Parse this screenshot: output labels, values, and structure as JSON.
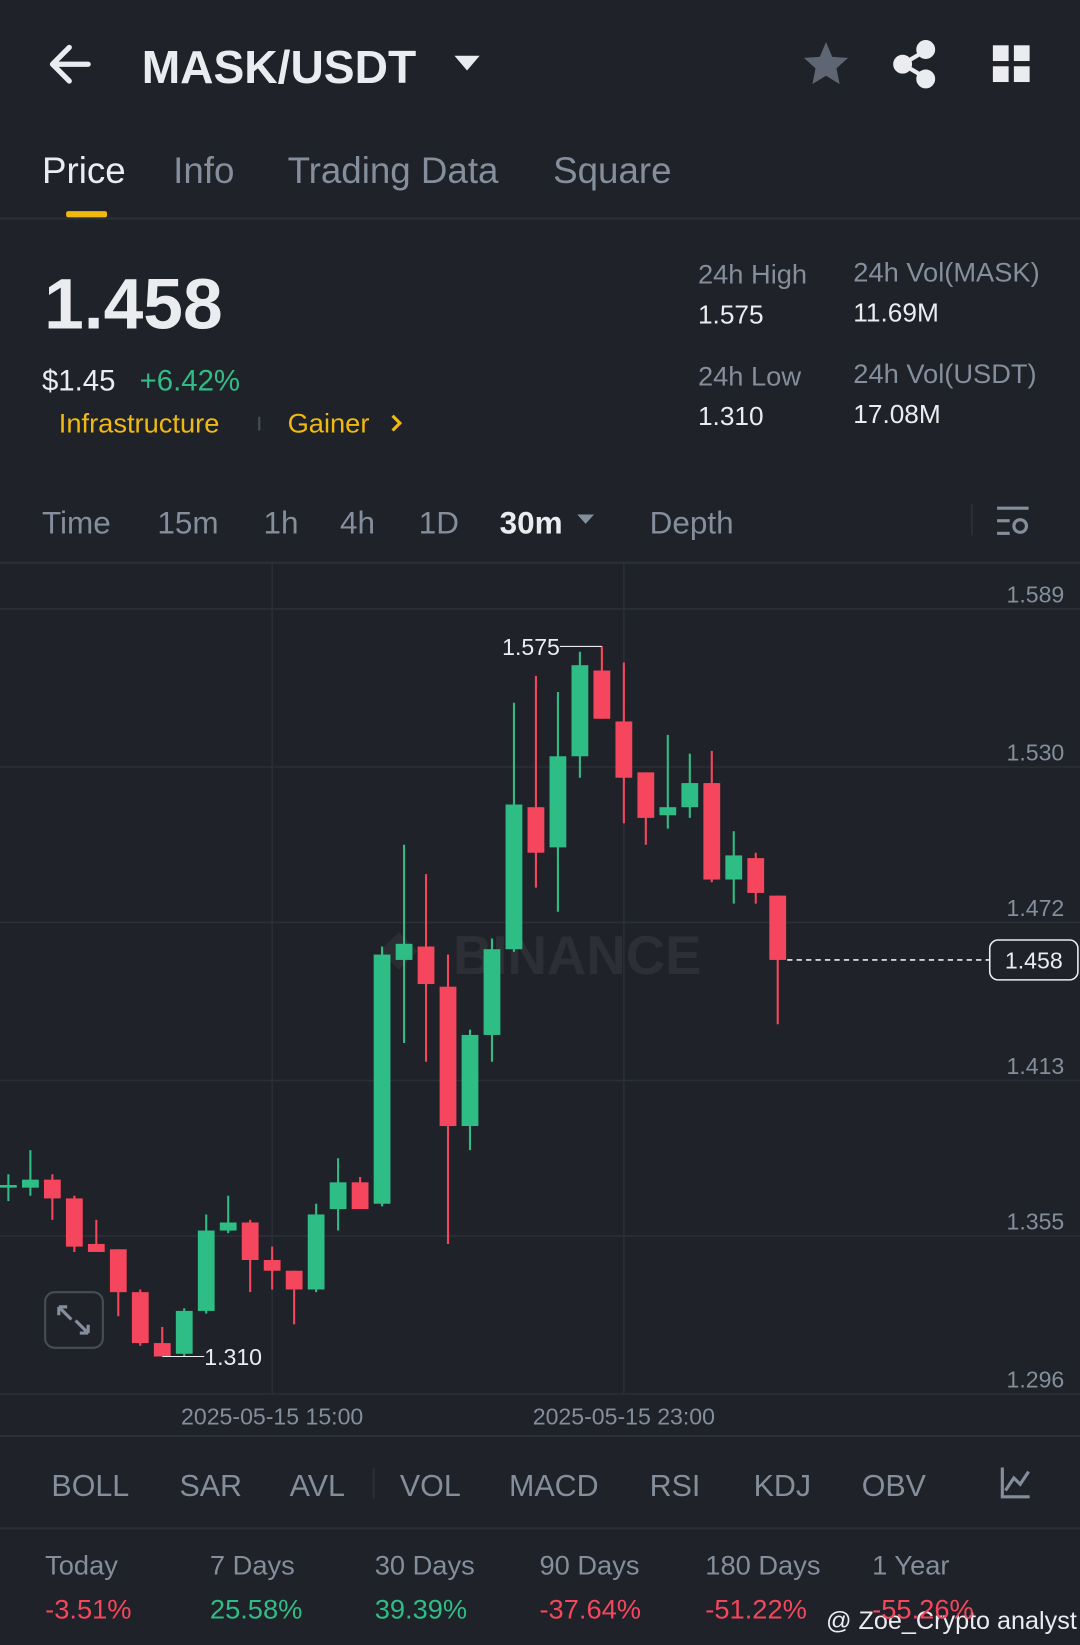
{
  "header": {
    "pair": "MASK/USDT"
  },
  "tabs": [
    "Price",
    "Info",
    "Trading Data",
    "Square"
  ],
  "price": {
    "last": "1.458",
    "fiat": "$1.45",
    "change": "+6.42%",
    "tags": [
      "Infrastructure",
      "Gainer"
    ]
  },
  "stats": [
    {
      "label": "24h High",
      "value": "1.575"
    },
    {
      "label": "24h Vol(MASK)",
      "value": "11.69M"
    },
    {
      "label": "24h Low",
      "value": "1.310"
    },
    {
      "label": "24h Vol(USDT)",
      "value": "17.08M"
    }
  ],
  "intervals": [
    "Time",
    "15m",
    "1h",
    "4h",
    "1D",
    "30m",
    "Depth"
  ],
  "chart_data": {
    "type": "candlestick",
    "watermark": "BINANCE",
    "categories": [
      null,
      null,
      null,
      null,
      null,
      null,
      null,
      null,
      null,
      null,
      null,
      null,
      "2025-05-15 15:00",
      null,
      null,
      null,
      null,
      null,
      null,
      null,
      null,
      null,
      null,
      null,
      null,
      null,
      null,
      null,
      "2025-05-15 23:00",
      null,
      null,
      null,
      null,
      null,
      null,
      null
    ],
    "open": [
      1.373,
      1.373,
      1.376,
      1.369,
      1.352,
      1.35,
      1.334,
      1.315,
      1.311,
      1.327,
      1.357,
      1.36,
      1.346,
      1.342,
      1.335,
      1.365,
      1.375,
      1.367,
      1.458,
      1.463,
      1.448,
      1.396,
      1.43,
      1.462,
      1.515,
      1.5,
      1.534,
      1.566,
      1.547,
      1.528,
      1.512,
      1.515,
      1.524,
      1.488,
      1.496,
      1.482
    ],
    "high": [
      1.378,
      1.387,
      1.378,
      1.37,
      1.361,
      1.35,
      1.335,
      1.321,
      1.328,
      1.363,
      1.37,
      1.361,
      1.351,
      1.342,
      1.367,
      1.384,
      1.377,
      1.463,
      1.501,
      1.49,
      1.46,
      1.432,
      1.466,
      1.554,
      1.564,
      1.558,
      1.573,
      1.575,
      1.569,
      1.528,
      1.542,
      1.535,
      1.536,
      1.506,
      1.498,
      1.482
    ],
    "low": [
      1.368,
      1.37,
      1.361,
      1.349,
      1.349,
      1.325,
      1.314,
      1.31,
      1.31,
      1.326,
      1.356,
      1.334,
      1.335,
      1.322,
      1.334,
      1.357,
      1.365,
      1.366,
      1.427,
      1.42,
      1.352,
      1.387,
      1.42,
      1.461,
      1.485,
      1.476,
      1.526,
      1.548,
      1.509,
      1.501,
      1.507,
      1.511,
      1.487,
      1.479,
      1.479,
      1.434
    ],
    "close": [
      1.374,
      1.376,
      1.369,
      1.351,
      1.349,
      1.334,
      1.315,
      1.31,
      1.327,
      1.357,
      1.36,
      1.346,
      1.342,
      1.335,
      1.363,
      1.375,
      1.365,
      1.46,
      1.464,
      1.449,
      1.396,
      1.43,
      1.462,
      1.516,
      1.498,
      1.534,
      1.568,
      1.548,
      1.526,
      1.511,
      1.515,
      1.524,
      1.488,
      1.497,
      1.483,
      1.458
    ],
    "up_color": "#2ebd85",
    "down_color": "#f6465d",
    "ylim": [
      1.296,
      1.589
    ],
    "yticks": [
      1.296,
      1.355,
      1.413,
      1.472,
      {
        "value": 1.53,
        "label": "1.530"
      },
      1.589
    ],
    "grid": true,
    "high_mark": 1.575,
    "low_mark": {
      "value": 1.31,
      "label": "1.310"
    },
    "last_price": 1.458
  },
  "indicators": [
    "BOLL",
    "SAR",
    "AVL",
    "VOL",
    "MACD",
    "RSI",
    "KDJ",
    "OBV"
  ],
  "performance": [
    {
      "label": "Today",
      "value": "-3.51%"
    },
    {
      "label": "7 Days",
      "value": "25.58%"
    },
    {
      "label": "30 Days",
      "value": "39.39%"
    },
    {
      "label": "90 Days",
      "value": "-37.64%"
    },
    {
      "label": "180 Days",
      "value": "-51.22%"
    },
    {
      "label": "1 Year",
      "value": "-55.26%"
    }
  ],
  "credit": "@ Zoe_Crypto analyst"
}
